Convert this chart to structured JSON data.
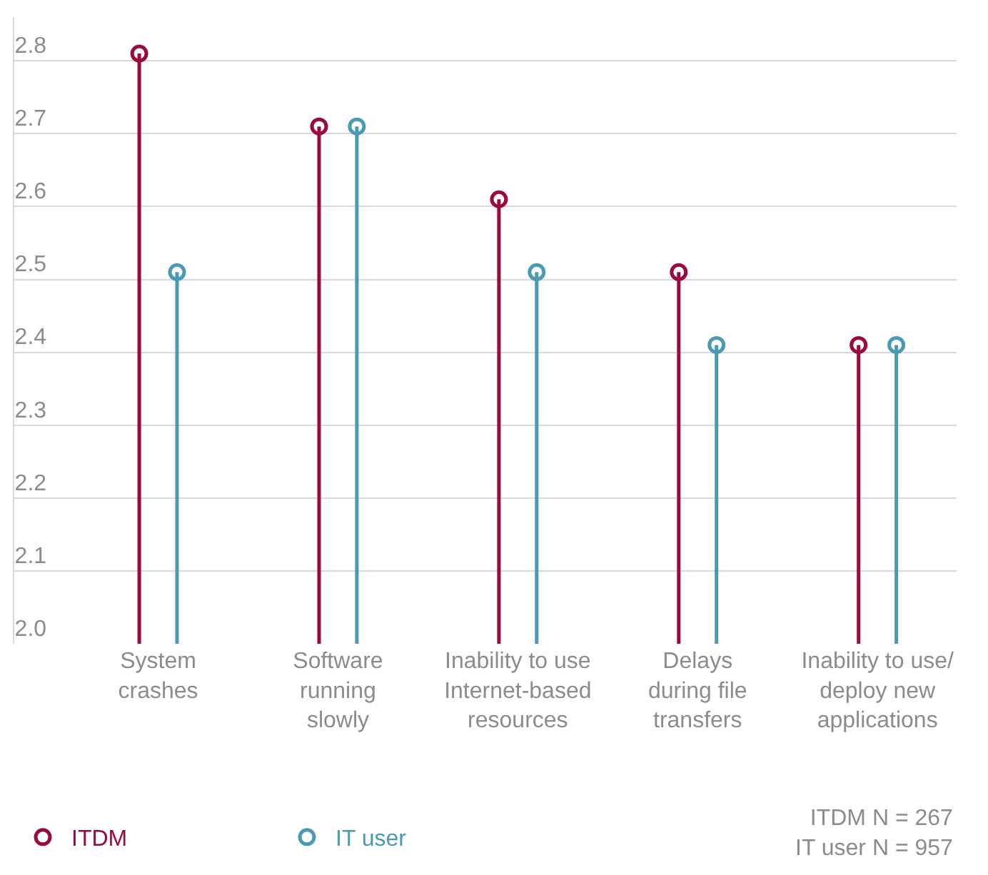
{
  "chart_data": {
    "type": "lollipop",
    "categories": [
      "System\ncrashes",
      "Software\nrunning\nslowly",
      "Inability to use\nInternet-based\nresources",
      "Delays\nduring file\ntransfers",
      "Inability to use/\ndeploy new\napplications"
    ],
    "series": [
      {
        "name": "ITDM",
        "color": "#9b0a3e",
        "values": [
          2.81,
          2.71,
          2.61,
          2.51,
          2.41
        ]
      },
      {
        "name": "IT user",
        "color": "#4a9ab5",
        "values": [
          2.51,
          2.71,
          2.51,
          2.41,
          2.41
        ]
      }
    ],
    "ylim": [
      2.0,
      2.86
    ],
    "yticks": [
      {
        "value": 2.0,
        "label": "2.0"
      },
      2.1,
      2.2,
      2.3,
      2.4,
      2.5,
      2.6,
      2.7,
      2.8
    ],
    "grid": "y",
    "legend": "bottom left",
    "marker": "circle",
    "annotations": [
      "ITDM N = 267\nIT user N = 957"
    ]
  }
}
